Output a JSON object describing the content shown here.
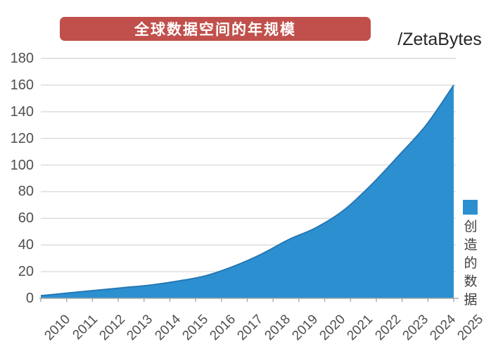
{
  "title": {
    "text": "全球数据空间的年规模"
  },
  "unit_label": "/ZetaBytes",
  "legend": {
    "label": "创造的数据"
  },
  "colors": {
    "accent_blue": "#2C8FD0",
    "line_blue": "#2478B5",
    "banner_red": "#C1504C",
    "grid_gray": "#DADADA",
    "axis_gray": "#A8A8A8",
    "label_gray": "#4F4F4F",
    "text_dark": "#262626"
  },
  "chart_data": {
    "type": "area",
    "title": "全球数据空间的年规模",
    "unit": "ZetaBytes",
    "categories": [
      "2010",
      "2011",
      "2012",
      "2013",
      "2014",
      "2015",
      "2016",
      "2017",
      "2018",
      "2019",
      "2020",
      "2021",
      "2022",
      "2023",
      "2024",
      "2025"
    ],
    "series": [
      {
        "name": "创造的数据",
        "color": "#2C8FD0",
        "values": [
          2,
          4,
          6,
          8,
          10,
          13,
          17,
          24,
          33,
          44,
          53,
          66,
          85,
          107,
          130,
          160
        ]
      }
    ],
    "xlabel": "",
    "ylabel": "",
    "ylim": [
      0,
      180
    ],
    "ytick_step": 20,
    "grid": "horizontal",
    "smooth": true,
    "x_label_rotation": -45,
    "legend_position": "right"
  }
}
